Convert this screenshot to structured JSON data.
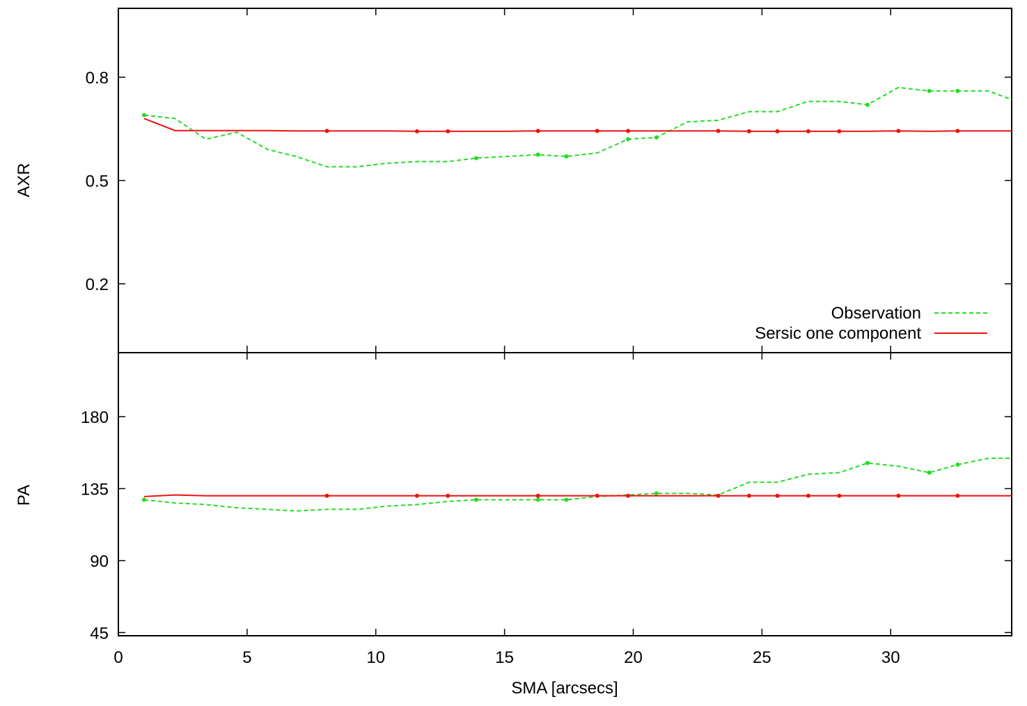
{
  "chart_data": [
    {
      "type": "line",
      "panel": "top",
      "ylabel": "AXR",
      "xlim": [
        0,
        34.7
      ],
      "ylim": [
        0.0,
        1.0
      ],
      "yticks": [
        0.2,
        0.5,
        0.8
      ],
      "ytick_labels": [
        "0.2",
        "0.5",
        "0.8"
      ],
      "xticks": [
        0,
        5,
        10,
        15,
        20,
        25,
        30
      ],
      "legend": {
        "position": "bottom-right",
        "entries": [
          {
            "label": "Observation",
            "color": "#22dd22",
            "style": "dashed"
          },
          {
            "label": "Sersic one component",
            "color": "#ee1111",
            "style": "solid"
          }
        ]
      },
      "series": [
        {
          "name": "Observation",
          "color": "#22dd22",
          "style": "dashed",
          "x": [
            1.0,
            2.2,
            3.4,
            4.6,
            5.8,
            6.9,
            8.1,
            9.3,
            10.4,
            11.6,
            12.8,
            13.9,
            15.1,
            16.3,
            17.4,
            18.6,
            19.8,
            20.9,
            22.1,
            23.3,
            24.5,
            25.6,
            26.8,
            28.0,
            29.1,
            30.3,
            31.5,
            32.6,
            33.8,
            34.7
          ],
          "y": [
            0.69,
            0.68,
            0.62,
            0.64,
            0.59,
            0.57,
            0.54,
            0.54,
            0.55,
            0.555,
            0.555,
            0.565,
            0.57,
            0.575,
            0.57,
            0.58,
            0.62,
            0.625,
            0.67,
            0.675,
            0.7,
            0.7,
            0.73,
            0.73,
            0.72,
            0.77,
            0.76,
            0.76,
            0.76,
            0.735
          ],
          "markers_at": [
            1.0,
            13.9,
            16.3,
            17.4,
            19.8,
            20.9,
            29.1,
            31.5,
            32.6
          ]
        },
        {
          "name": "Sersic one component",
          "color": "#ee1111",
          "style": "solid",
          "x": [
            1.0,
            2.2,
            3.4,
            4.6,
            5.8,
            6.9,
            8.1,
            9.3,
            10.4,
            11.6,
            12.8,
            13.9,
            15.1,
            16.3,
            17.4,
            18.6,
            19.8,
            20.9,
            22.1,
            23.3,
            24.5,
            25.6,
            26.8,
            28.0,
            29.1,
            30.3,
            31.5,
            32.6,
            33.8,
            34.7
          ],
          "y": [
            0.68,
            0.645,
            0.645,
            0.645,
            0.645,
            0.644,
            0.644,
            0.644,
            0.644,
            0.643,
            0.643,
            0.643,
            0.643,
            0.644,
            0.644,
            0.644,
            0.644,
            0.644,
            0.644,
            0.644,
            0.643,
            0.643,
            0.643,
            0.643,
            0.643,
            0.644,
            0.643,
            0.644,
            0.644,
            0.644
          ],
          "markers_at": [
            8.1,
            11.6,
            12.8,
            16.3,
            18.6,
            19.8,
            23.3,
            24.5,
            25.6,
            26.8,
            28.0,
            30.3,
            32.6
          ]
        }
      ]
    },
    {
      "type": "line",
      "panel": "bottom",
      "xlabel": "SMA [arcsecs]",
      "ylabel": "PA",
      "xlim": [
        0,
        34.7
      ],
      "ylim": [
        43,
        220
      ],
      "yticks": [
        45,
        90,
        135,
        180
      ],
      "ytick_labels": [
        "45",
        "90",
        "135",
        "180"
      ],
      "xticks": [
        0,
        5,
        10,
        15,
        20,
        25,
        30
      ],
      "xtick_labels": [
        "0",
        "5",
        "10",
        "15",
        "20",
        "25",
        "30"
      ],
      "series": [
        {
          "name": "Observation",
          "color": "#22dd22",
          "style": "dashed",
          "x": [
            1.0,
            2.2,
            3.4,
            4.6,
            5.8,
            6.9,
            8.1,
            9.3,
            10.4,
            11.6,
            12.8,
            13.9,
            15.1,
            16.3,
            17.4,
            18.6,
            19.8,
            20.9,
            22.1,
            23.3,
            24.5,
            25.6,
            26.8,
            28.0,
            29.1,
            30.3,
            31.5,
            32.6,
            33.8,
            34.7
          ],
          "y": [
            128,
            126,
            125,
            123,
            122,
            121,
            122,
            122,
            124,
            125,
            127,
            128,
            128,
            128,
            128,
            130,
            131,
            132,
            132,
            131,
            139,
            139,
            144,
            145,
            151,
            149,
            145,
            150,
            154,
            154
          ],
          "markers_at": [
            1.0,
            13.9,
            16.3,
            17.4,
            20.9,
            29.1,
            31.5,
            32.6
          ]
        },
        {
          "name": "Sersic one component",
          "color": "#ee1111",
          "style": "solid",
          "x": [
            1.0,
            2.2,
            3.4,
            4.6,
            5.8,
            6.9,
            8.1,
            9.3,
            10.4,
            11.6,
            12.8,
            13.9,
            15.1,
            16.3,
            17.4,
            18.6,
            19.8,
            20.9,
            22.1,
            23.3,
            24.5,
            25.6,
            26.8,
            28.0,
            29.1,
            30.3,
            31.5,
            32.6,
            33.8,
            34.7
          ],
          "y": [
            130,
            131,
            130.5,
            130.5,
            130.5,
            130.5,
            130.5,
            130.5,
            130.5,
            130.5,
            130.5,
            130.5,
            130.5,
            130.5,
            130.5,
            130.5,
            130.5,
            130.5,
            130.5,
            130.5,
            130.5,
            130.5,
            130.5,
            130.5,
            130.5,
            130.5,
            130.5,
            130.5,
            130.5,
            130.5
          ],
          "markers_at": [
            8.1,
            11.6,
            12.8,
            16.3,
            18.6,
            19.8,
            23.3,
            24.5,
            25.6,
            26.8,
            28.0,
            30.3,
            32.6
          ]
        }
      ]
    }
  ]
}
